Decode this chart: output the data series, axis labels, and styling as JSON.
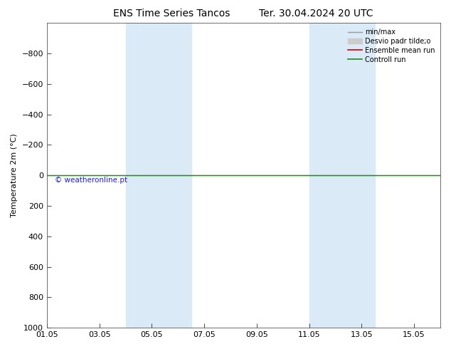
{
  "title": "ENS Time Series Tancos",
  "title2": "Ter. 30.04.2024 20 UTC",
  "ylabel": "Temperature 2m (°C)",
  "watermark": "© weatheronline.pt",
  "ylim_bottom": 1000,
  "ylim_top": -1000,
  "yticks": [
    -800,
    -600,
    -400,
    -200,
    0,
    200,
    400,
    600,
    800,
    1000
  ],
  "x_tick_labels": [
    "01.05",
    "03.05",
    "05.05",
    "07.05",
    "09.05",
    "11.05",
    "13.05",
    "15.05"
  ],
  "x_tick_positions": [
    0,
    2,
    4,
    6,
    8,
    10,
    12,
    14
  ],
  "xlim": [
    0,
    15
  ],
  "shaded_regions": [
    {
      "start": 3.0,
      "end": 5.5
    },
    {
      "start": 10.0,
      "end": 12.5
    }
  ],
  "shade_color": "#daeaf7",
  "flat_line_y": 0,
  "control_run_color": "#228B22",
  "ensemble_mean_color": "#cc0000",
  "minmax_color": "#999999",
  "std_color": "#cccccc",
  "title_fontsize": 10,
  "axis_fontsize": 8,
  "tick_fontsize": 8,
  "legend_fontsize": 7,
  "watermark_color": "#1a1aff",
  "background_color": "#ffffff",
  "legend_labels": [
    "min/max",
    "Desvio padr tilde;o",
    "Ensemble mean run",
    "Controll run"
  ],
  "legend_colors": [
    "#999999",
    "#cccccc",
    "#cc0000",
    "#228B22"
  ]
}
